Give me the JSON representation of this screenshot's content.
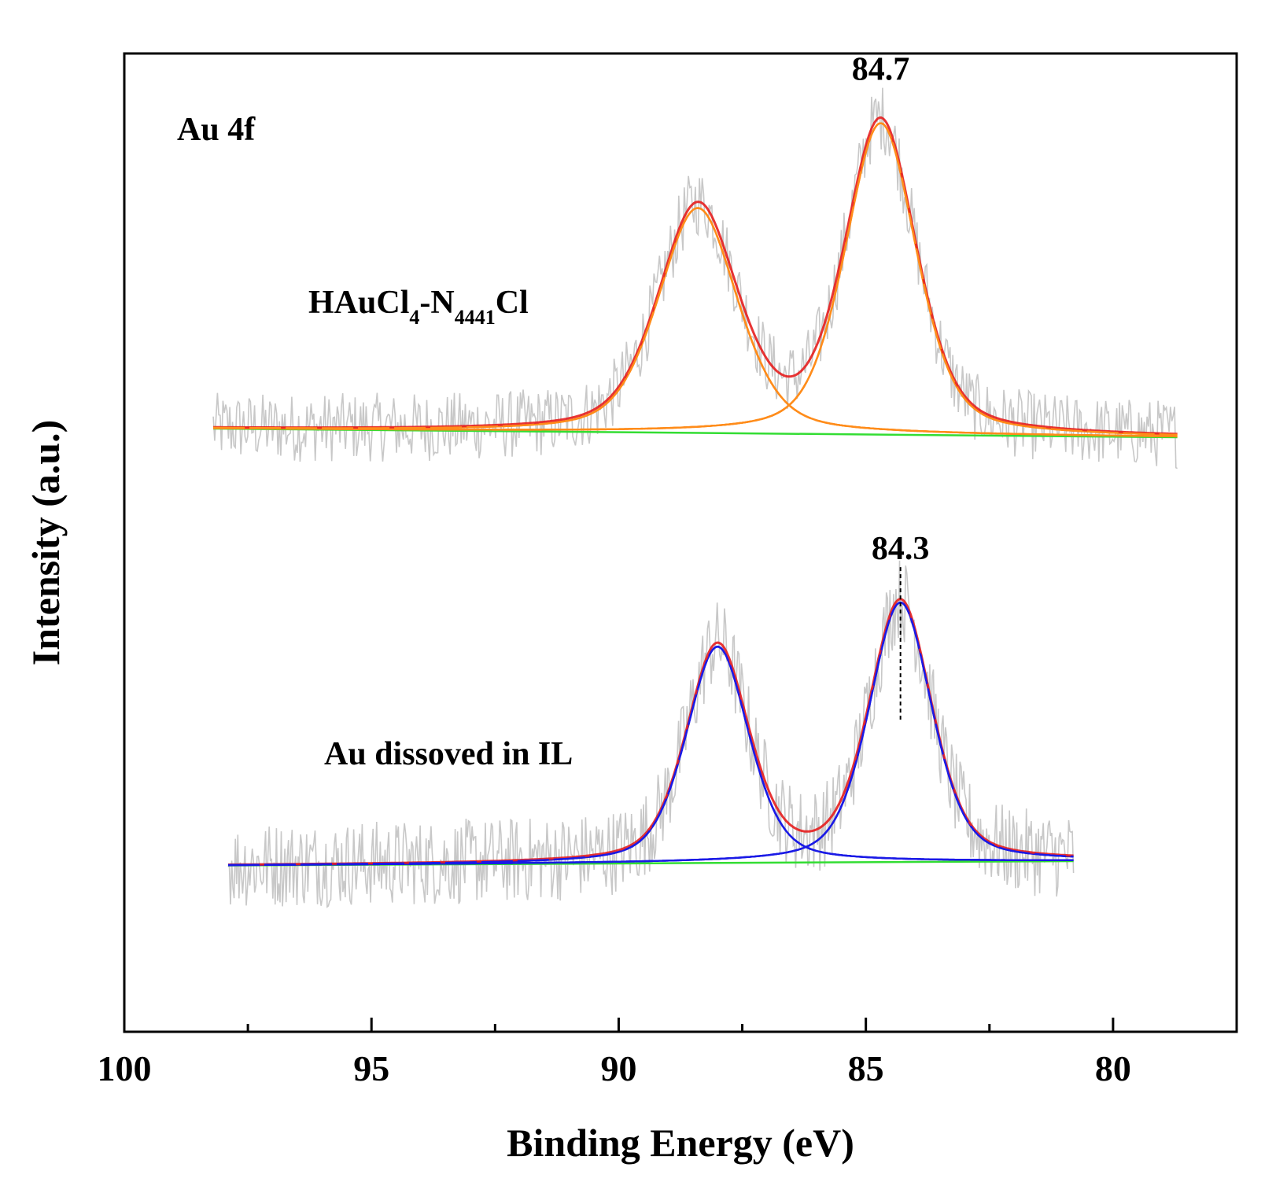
{
  "chart_data": {
    "type": "line",
    "title": "",
    "xlabel": "Binding Energy (eV)",
    "ylabel": "Intensity (a.u.)",
    "xlim": [
      100,
      77.5
    ],
    "x_reversed": true,
    "xticks": [
      100,
      95,
      90,
      85,
      80
    ],
    "yticks_shown": false,
    "grid": false,
    "legend": "none",
    "label_panel": "Au 4f",
    "colors": {
      "raw": "#c8c8c8",
      "upper_fit": "#ff8c1a",
      "upper_envelope": "#e61e1e",
      "lower_fit": "#1a1ae6",
      "lower_envelope": "#e61e1e",
      "background": "#33dd33",
      "axis": "#000000"
    },
    "spectra": [
      {
        "name": "HAuCl4-N4441Cl",
        "label_main": "HAuCl",
        "label_sub1": "4",
        "label_mid": "-N",
        "label_sub2": "4441",
        "label_tail": "Cl",
        "x_range": [
          98.2,
          78.7
        ],
        "baseline": {
          "start": 0.05,
          "end": 0.04
        },
        "peaks": [
          {
            "center": 88.4,
            "height": 0.26,
            "width": 0.95,
            "label": ""
          },
          {
            "center": 84.7,
            "height": 0.36,
            "width": 0.85,
            "label": "84.7"
          }
        ],
        "raw_noise_amplitude": 0.04,
        "offset": 0.5
      },
      {
        "name": "Au dissoved in IL",
        "label_main": "Au dissoved in IL",
        "x_range": [
          97.9,
          80.8
        ],
        "baseline": {
          "start": 0.045,
          "end": 0.05
        },
        "peaks": [
          {
            "center": 88.0,
            "height": 0.25,
            "width": 0.75,
            "label": ""
          },
          {
            "center": 84.3,
            "height": 0.3,
            "width": 0.75,
            "label": "84.3"
          }
        ],
        "raw_noise_amplitude": 0.05,
        "offset": 0.0
      }
    ]
  }
}
